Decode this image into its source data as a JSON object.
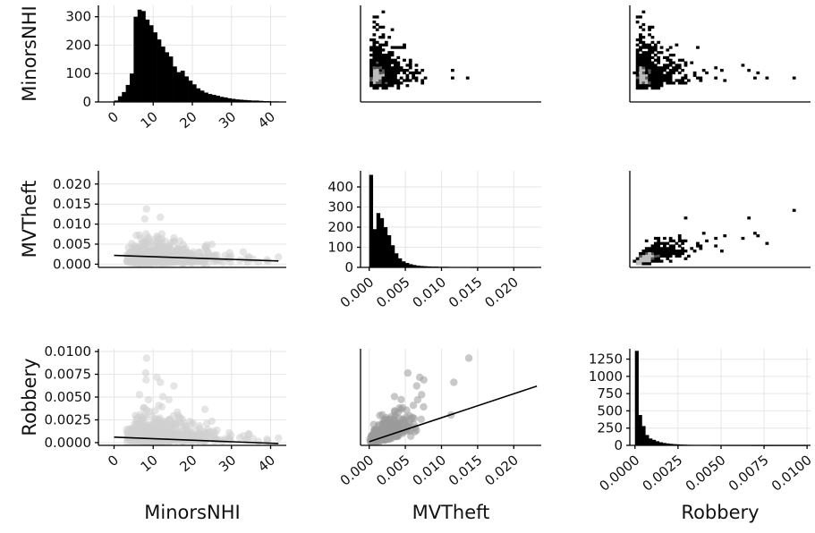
{
  "chart_data": [
    {
      "panel": "r1c1",
      "type": "bar",
      "subtype": "histogram",
      "xlim": [
        -4,
        44
      ],
      "ylim": [
        0,
        340
      ],
      "x_ticks": [
        0,
        10,
        20,
        30,
        40
      ],
      "x_tick_labels": [
        "0",
        "10",
        "20",
        "30",
        "40"
      ],
      "y_ticks": [
        0,
        100,
        200,
        300
      ],
      "y_tick_labels": [
        "0",
        "100",
        "200",
        "300"
      ],
      "ylabel": "MinorsNHI",
      "bin_start": 0,
      "bin_width": 1,
      "values": [
        5,
        20,
        35,
        60,
        100,
        300,
        325,
        320,
        290,
        270,
        245,
        220,
        195,
        175,
        160,
        125,
        105,
        110,
        90,
        75,
        62,
        48,
        40,
        33,
        28,
        25,
        22,
        18,
        16,
        13,
        11,
        9,
        8,
        7,
        6,
        5,
        5,
        4,
        3,
        3,
        2,
        2
      ],
      "color": "#000000"
    },
    {
      "panel": "r1c2",
      "type": "heatmap",
      "subtype": "2d-histogram",
      "x_variable": "MVTheft",
      "y_variable": "MinorsNHI",
      "xlim": [
        -0.0012,
        0.0238
      ],
      "ylim": [
        -4,
        45
      ],
      "color": "#000000"
    },
    {
      "panel": "r1c3",
      "type": "heatmap",
      "subtype": "2d-histogram",
      "x_variable": "Robbery",
      "y_variable": "MinorsNHI",
      "xlim": [
        -0.0003,
        0.0102
      ],
      "ylim": [
        -4,
        45
      ],
      "color": "#000000"
    },
    {
      "panel": "r2c1",
      "type": "scatter",
      "subtype": "scatter-with-fit",
      "xlim": [
        -4,
        44
      ],
      "ylim": [
        -0.0008,
        0.0233
      ],
      "y_ticks": [
        0,
        0.005,
        0.01,
        0.015,
        0.02
      ],
      "y_tick_labels": [
        "0.000",
        "0.005",
        "0.010",
        "0.015",
        "0.020"
      ],
      "ylabel": "MVTheft",
      "fit_line": {
        "x": [
          0,
          42
        ],
        "y": [
          0.0022,
          0.0008
        ]
      },
      "point_color": "#cfcfcf",
      "line_color": "#000000"
    },
    {
      "panel": "r2c2",
      "type": "bar",
      "subtype": "histogram",
      "xlim": [
        -0.0012,
        0.0238
      ],
      "ylim": [
        0,
        480
      ],
      "x_ticks": [
        0,
        0.005,
        0.01,
        0.015,
        0.02
      ],
      "x_tick_labels": [
        "0.000",
        "0.005",
        "0.010",
        "0.015",
        "0.020"
      ],
      "y_ticks": [
        0,
        100,
        200,
        300,
        400
      ],
      "y_tick_labels": [
        "0",
        "100",
        "200",
        "300",
        "400"
      ],
      "bin_start": 0,
      "bin_width": 0.0005,
      "values": [
        460,
        190,
        270,
        245,
        200,
        160,
        110,
        70,
        45,
        30,
        22,
        16,
        12,
        9,
        7,
        6,
        5,
        4,
        4,
        3,
        3,
        3,
        2,
        2,
        2,
        2,
        2,
        2,
        1,
        1,
        1,
        1,
        1,
        1,
        1,
        1,
        1,
        1,
        1,
        1,
        1,
        1,
        1,
        1,
        1,
        1
      ],
      "color": "#000000"
    },
    {
      "panel": "r2c3",
      "type": "heatmap",
      "subtype": "2d-histogram",
      "x_variable": "Robbery",
      "y_variable": "MVTheft",
      "xlim": [
        -0.0003,
        0.0102
      ],
      "ylim": [
        -0.0008,
        0.0233
      ],
      "color": "#000000"
    },
    {
      "panel": "r3c1",
      "type": "scatter",
      "subtype": "scatter-with-fit",
      "xlim": [
        -4,
        44
      ],
      "ylim": [
        -0.0003,
        0.0103
      ],
      "x_ticks": [
        0,
        10,
        20,
        30,
        40
      ],
      "x_tick_labels": [
        "0",
        "10",
        "20",
        "30",
        "40"
      ],
      "y_ticks": [
        0,
        0.0025,
        0.005,
        0.0075,
        0.01
      ],
      "y_tick_labels": [
        "0.0000",
        "0.0025",
        "0.0050",
        "0.0075",
        "0.0100"
      ],
      "xlabel": "MinorsNHI",
      "ylabel": "Robbery",
      "fit_line": {
        "x": [
          0,
          42
        ],
        "y": [
          0.0006,
          -0.0001
        ]
      },
      "point_color": "#cfcfcf",
      "line_color": "#000000"
    },
    {
      "panel": "r3c2",
      "type": "scatter",
      "subtype": "scatter-with-fit",
      "xlim": [
        -0.0012,
        0.0238
      ],
      "ylim": [
        -0.0003,
        0.0103
      ],
      "x_ticks": [
        0,
        0.005,
        0.01,
        0.015,
        0.02
      ],
      "x_tick_labels": [
        "0.000",
        "0.005",
        "0.010",
        "0.015",
        "0.020"
      ],
      "xlabel": "MVTheft",
      "fit_line": {
        "x": [
          0,
          0.0232
        ],
        "y": [
          0.0001,
          0.0062
        ]
      },
      "point_color": "#9a9a9a",
      "line_color": "#000000"
    },
    {
      "panel": "r3c3",
      "type": "bar",
      "subtype": "histogram",
      "xlim": [
        -0.0003,
        0.0102
      ],
      "ylim": [
        0,
        1400
      ],
      "x_ticks": [
        0,
        0.0025,
        0.005,
        0.0075,
        0.01
      ],
      "x_tick_labels": [
        "0.0000",
        "0.0025",
        "0.0050",
        "0.0075",
        "0.0100"
      ],
      "y_ticks": [
        0,
        250,
        500,
        750,
        1000,
        1250
      ],
      "y_tick_labels": [
        "0",
        "250",
        "500",
        "750",
        "1000",
        "1250"
      ],
      "xlabel": "Robbery",
      "bin_start": 0,
      "bin_width": 0.0002,
      "values": [
        1370,
        440,
        280,
        150,
        100,
        80,
        60,
        45,
        35,
        28,
        22,
        18,
        15,
        12,
        10,
        8,
        7,
        6,
        5,
        5,
        4,
        4,
        3,
        3,
        3,
        3,
        2,
        2,
        2,
        2,
        2,
        2,
        2,
        2,
        1,
        1,
        1,
        1,
        1,
        1,
        1,
        1,
        1,
        1,
        1,
        1,
        1,
        1,
        1,
        1
      ],
      "color": "#000000"
    }
  ]
}
